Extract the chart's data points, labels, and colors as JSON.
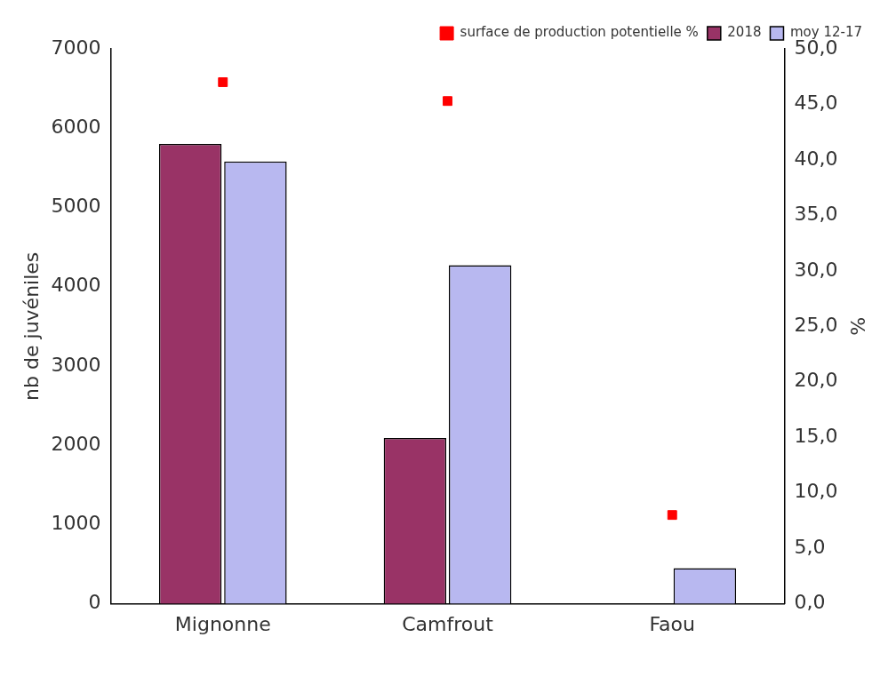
{
  "chart_data": {
    "type": "bar",
    "categories": [
      "Mignonne",
      "Camfrout",
      "Faou"
    ],
    "ylabel": "nb de juvéniles",
    "y2label": "%",
    "ylim": [
      0,
      7000
    ],
    "yticks": [
      0,
      1000,
      2000,
      3000,
      4000,
      5000,
      6000,
      7000
    ],
    "y2lim": [
      0,
      50
    ],
    "y2ticks": [
      {
        "value": 0,
        "label": "0,0"
      },
      {
        "value": 5,
        "label": "5,0"
      },
      {
        "value": 10,
        "label": "10,0"
      },
      {
        "value": 15,
        "label": "15,0"
      },
      {
        "value": 20,
        "label": "20,0"
      },
      {
        "value": 25,
        "label": "25,0"
      },
      {
        "value": 30,
        "label": "30,0"
      },
      {
        "value": 35,
        "label": "35,0"
      },
      {
        "value": 40,
        "label": "40,0"
      },
      {
        "value": 45,
        "label": "45,0"
      },
      {
        "value": 50,
        "label": "50,0"
      }
    ],
    "series": [
      {
        "name": "2018",
        "color": "#993366",
        "values": [
          5800,
          2090,
          null
        ]
      },
      {
        "name": "moy 12-17",
        "color": "#b8b8f0",
        "values": [
          5580,
          4270,
          450
        ]
      },
      {
        "name": "surface de production potentielle %",
        "type": "scatter",
        "axis": "y2",
        "color": "#ff0000",
        "values": [
          47.0,
          45.3,
          8.0
        ]
      }
    ],
    "marker": "square",
    "grid": false,
    "legend": "top right"
  }
}
